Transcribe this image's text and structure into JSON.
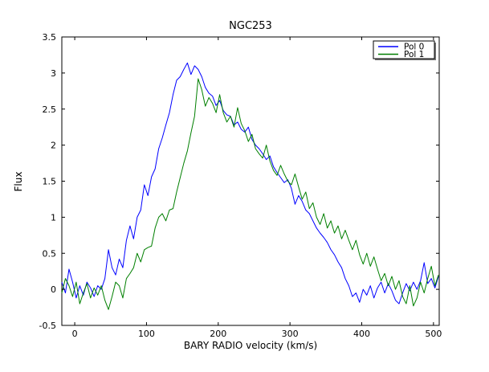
{
  "figure": {
    "background": "#ffffff",
    "frame_color": "#000000"
  },
  "chart_data": {
    "type": "line",
    "title": "NGC253",
    "xlabel": "BARY RADIO velocity (km/s)",
    "ylabel": "Flux",
    "xlim": [
      -18,
      508
    ],
    "ylim": [
      -0.5,
      3.5
    ],
    "xticks": [
      0,
      100,
      200,
      300,
      400,
      500
    ],
    "xtick_labels": [
      "0",
      "100",
      "200",
      "300",
      "400",
      "500"
    ],
    "yticks": [
      -0.5,
      0,
      0.5,
      1,
      1.5,
      2,
      2.5,
      3,
      3.5
    ],
    "ytick_labels": [
      "-0.5",
      "0",
      "0.5",
      "1",
      "1.5",
      "2",
      "2.5",
      "3",
      "3.5"
    ],
    "grid": false,
    "legend": {
      "position": "upper right",
      "entries": [
        {
          "label": "Pol 0",
          "color": "#0000ff"
        },
        {
          "label": "Pol 1",
          "color": "#007f00"
        }
      ]
    },
    "x": [
      -18,
      -13,
      -8,
      -3,
      2,
      7,
      12,
      17,
      22,
      27,
      32,
      37,
      42,
      47,
      52,
      57,
      62,
      67,
      72,
      77,
      82,
      87,
      92,
      97,
      102,
      107,
      112,
      117,
      122,
      127,
      132,
      137,
      142,
      147,
      152,
      157,
      162,
      167,
      172,
      177,
      182,
      187,
      192,
      197,
      202,
      207,
      212,
      217,
      222,
      227,
      232,
      237,
      242,
      247,
      252,
      257,
      262,
      267,
      272,
      277,
      282,
      287,
      292,
      297,
      302,
      307,
      312,
      317,
      322,
      327,
      332,
      337,
      342,
      347,
      352,
      357,
      362,
      367,
      372,
      377,
      382,
      387,
      392,
      397,
      402,
      407,
      412,
      417,
      422,
      427,
      432,
      437,
      442,
      447,
      452,
      457,
      462,
      467,
      472,
      477,
      482,
      487,
      492,
      497,
      502,
      507
    ],
    "series": [
      {
        "name": "Pol 0",
        "color": "#0000ff",
        "values": [
          0.1,
          -0.05,
          0.28,
          0.1,
          -0.12,
          0.05,
          -0.08,
          0.1,
          0.02,
          -0.1,
          0.05,
          0.0,
          0.15,
          0.55,
          0.3,
          0.2,
          0.42,
          0.3,
          0.68,
          0.88,
          0.7,
          1.0,
          1.1,
          1.45,
          1.3,
          1.56,
          1.67,
          1.95,
          2.1,
          2.28,
          2.45,
          2.7,
          2.9,
          2.95,
          3.05,
          3.14,
          2.98,
          3.1,
          3.05,
          2.95,
          2.8,
          2.72,
          2.68,
          2.55,
          2.62,
          2.48,
          2.42,
          2.4,
          2.28,
          2.32,
          2.22,
          2.18,
          2.25,
          2.08,
          2.0,
          1.95,
          1.88,
          1.8,
          1.85,
          1.7,
          1.62,
          1.55,
          1.48,
          1.52,
          1.4,
          1.18,
          1.3,
          1.22,
          1.1,
          1.05,
          0.95,
          0.85,
          0.78,
          0.72,
          0.65,
          0.55,
          0.48,
          0.38,
          0.3,
          0.15,
          0.05,
          -0.1,
          -0.05,
          -0.18,
          0.0,
          -0.08,
          0.05,
          -0.12,
          0.02,
          0.1,
          -0.05,
          0.08,
          -0.02,
          -0.15,
          -0.2,
          -0.05,
          0.08,
          -0.02,
          0.1,
          0.0,
          0.12,
          0.37,
          0.08,
          0.15,
          0.02,
          0.18
        ]
      },
      {
        "name": "Pol 1",
        "color": "#007f00",
        "values": [
          -0.05,
          0.15,
          0.05,
          -0.1,
          0.1,
          -0.2,
          -0.05,
          0.08,
          -0.12,
          0.02,
          -0.08,
          0.05,
          -0.15,
          -0.28,
          -0.1,
          0.1,
          0.05,
          -0.12,
          0.15,
          0.22,
          0.3,
          0.5,
          0.38,
          0.55,
          0.58,
          0.6,
          0.85,
          1.0,
          1.05,
          0.95,
          1.1,
          1.12,
          1.35,
          1.55,
          1.75,
          1.92,
          2.17,
          2.4,
          2.92,
          2.77,
          2.54,
          2.66,
          2.58,
          2.45,
          2.7,
          2.45,
          2.32,
          2.4,
          2.25,
          2.52,
          2.3,
          2.2,
          2.05,
          2.15,
          1.95,
          1.88,
          1.82,
          2.0,
          1.78,
          1.65,
          1.58,
          1.72,
          1.6,
          1.5,
          1.45,
          1.6,
          1.42,
          1.25,
          1.35,
          1.12,
          1.2,
          1.0,
          0.9,
          1.05,
          0.85,
          0.95,
          0.78,
          0.88,
          0.7,
          0.82,
          0.68,
          0.55,
          0.68,
          0.48,
          0.35,
          0.5,
          0.32,
          0.45,
          0.28,
          0.12,
          0.22,
          0.05,
          0.18,
          0.0,
          0.12,
          -0.1,
          -0.2,
          0.05,
          -0.23,
          -0.12,
          0.1,
          -0.05,
          0.15,
          0.32,
          0.05,
          0.2
        ]
      }
    ]
  }
}
